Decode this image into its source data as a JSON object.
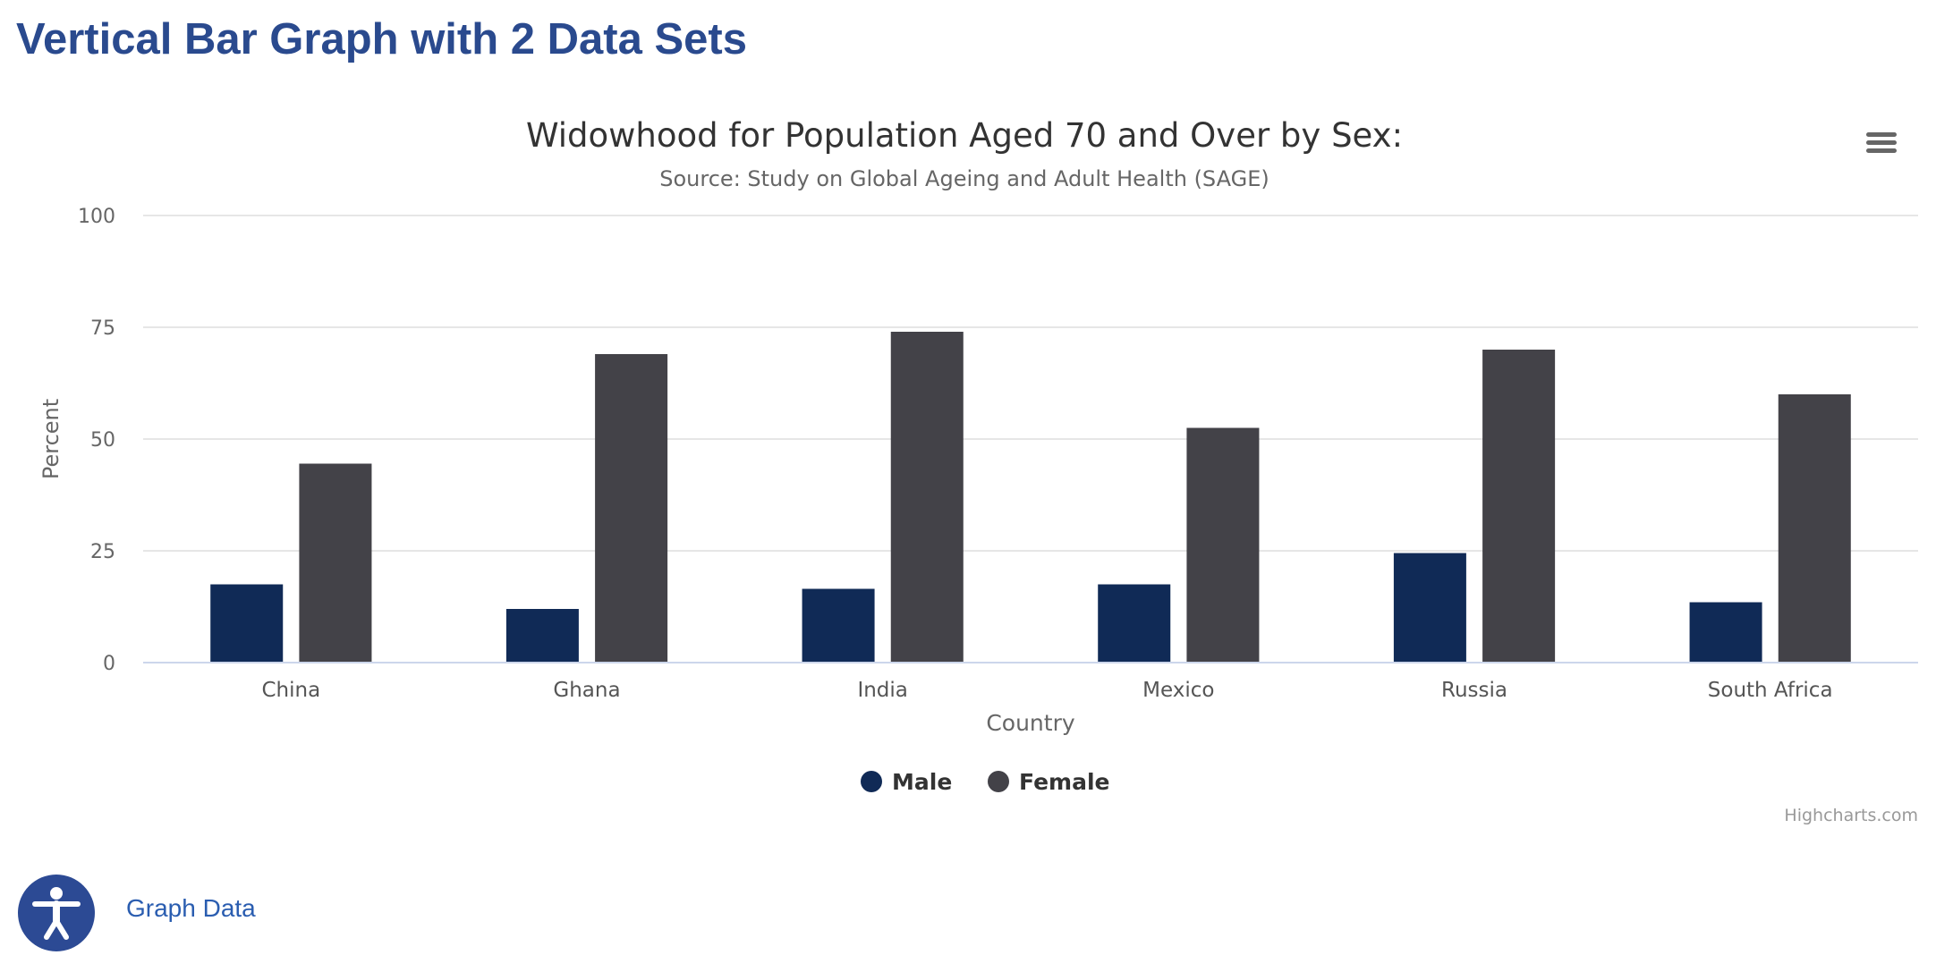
{
  "page": {
    "title": "Vertical Bar Graph with 2 Data Sets"
  },
  "chart_data": {
    "type": "bar",
    "title": "Widowhood for Population Aged 70 and Over by Sex:",
    "subtitle": "Source: Study on Global Ageing and Adult Health (SAGE)",
    "xlabel": "Country",
    "ylabel": "Percent",
    "ylim": [
      0,
      100
    ],
    "yticks": [
      0,
      25,
      50,
      75,
      100
    ],
    "grid": true,
    "legend_position": "bottom-center",
    "categories": [
      "China",
      "Ghana",
      "India",
      "Mexico",
      "Russia",
      "South Africa"
    ],
    "series": [
      {
        "name": "Male",
        "color": "#102a56",
        "values": [
          17.5,
          12,
          16.5,
          17.5,
          24.5,
          13.5
        ]
      },
      {
        "name": "Female",
        "color": "#434248",
        "values": [
          44.5,
          69,
          74,
          52.5,
          70,
          60
        ]
      }
    ],
    "credits": "Highcharts.com"
  },
  "icons": {
    "menu": "hamburger-menu-icon",
    "accessibility": "accessibility-person-icon"
  },
  "footer": {
    "graph_data_link": "Graph Data"
  }
}
